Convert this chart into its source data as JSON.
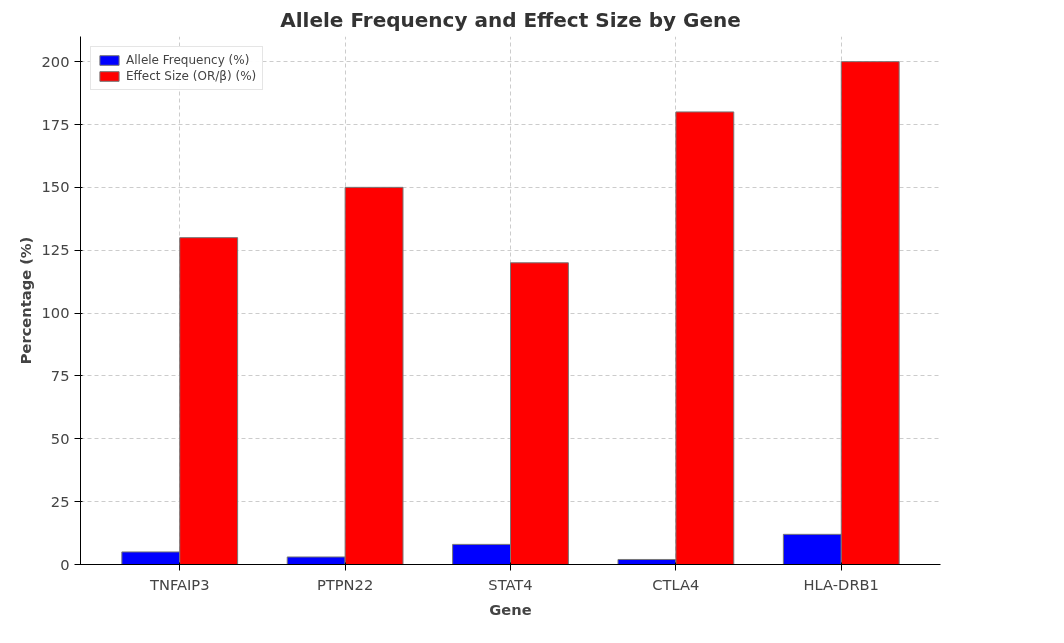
{
  "chart_data": {
    "type": "bar",
    "title": "Allele Frequency and Effect Size by Gene",
    "xlabel": "Gene",
    "ylabel": "Percentage (%)",
    "categories": [
      "TNFAIP3",
      "PTPN22",
      "STAT4",
      "CTLA4",
      "HLA-DRB1"
    ],
    "series": [
      {
        "name": "Allele Frequency (%)",
        "color": "#0000ff",
        "values": [
          5,
          3,
          8,
          2,
          12
        ]
      },
      {
        "name": "Effect Size (OR/β) (%)",
        "color": "#ff0000",
        "values": [
          130,
          150,
          120,
          180,
          200
        ]
      }
    ],
    "ylim": [
      0,
      210
    ],
    "yticks": [
      0,
      25,
      50,
      75,
      100,
      125,
      150,
      175,
      200
    ],
    "grid": true,
    "legend": "top left"
  }
}
